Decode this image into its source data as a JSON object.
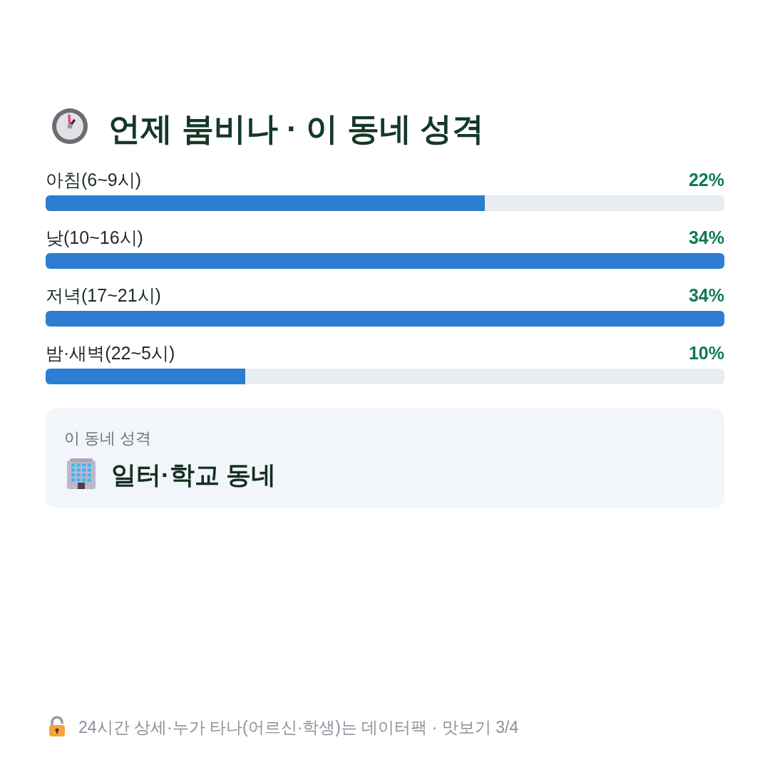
{
  "chart_data": [
    {
      "type": "bar",
      "orientation": "horizontal",
      "title": "언제 붐비나 · 이 동네 성격",
      "categories": [
        "아침(6~9시)",
        "낮(10~16시)",
        "저녁(17~21시)",
        "밤·새벽(22~5시)"
      ],
      "values": [
        22,
        34,
        34,
        10
      ],
      "value_labels": [
        "22%",
        "34%",
        "34%",
        "10%"
      ],
      "color": "#2d7dd2",
      "xlim": [
        0,
        34
      ],
      "annotations": [
        "24시간 상세·누가 타나(어르신·학생)는 데이터팩 · 맛보기 3/4"
      ]
    },
    {
      "type": "other",
      "title": "이 동네 성격",
      "annotations": [
        "일터·학교 동네"
      ]
    }
  ]
}
